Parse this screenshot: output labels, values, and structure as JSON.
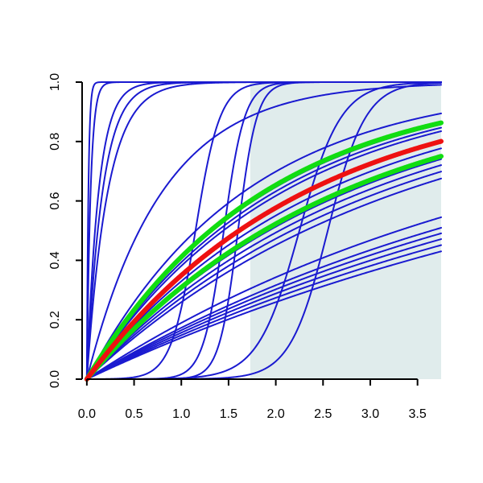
{
  "chart_data": {
    "type": "line",
    "xlim": [
      -0.05,
      3.75
    ],
    "ylim": [
      0,
      1
    ],
    "x_ticks": [
      0,
      0.5,
      1,
      1.5,
      2,
      2.5,
      3,
      3.5
    ],
    "x_tick_labels": [
      "0.0",
      "0.5",
      "1.0",
      "1.5",
      "2.0",
      "2.5",
      "3.0",
      "3.5"
    ],
    "y_ticks": [
      0,
      0.2,
      0.4,
      0.6,
      0.8,
      1
    ],
    "y_tick_labels": [
      "0.0",
      "0.2",
      "0.4",
      "0.6",
      "0.8",
      "1.0"
    ],
    "grid": false,
    "shaded_region": {
      "x_start": 1.73,
      "x_end": 3.75,
      "color": "#e0ecec"
    },
    "colors": {
      "blue": "#1a1ad0",
      "red": "#ee1111",
      "green": "#11dd11",
      "axis": "#000000"
    },
    "series": [
      {
        "color": "blue",
        "kind": "exp",
        "k": 60
      },
      {
        "color": "blue",
        "kind": "exp",
        "k": 25
      },
      {
        "color": "blue",
        "kind": "exp",
        "k": 8
      },
      {
        "color": "blue",
        "kind": "exp",
        "k": 6
      },
      {
        "color": "blue",
        "kind": "exp",
        "k": 4.5
      },
      {
        "color": "blue",
        "kind": "exp",
        "k": 1.25
      },
      {
        "color": "blue",
        "kind": "logistic",
        "mid": 1.6,
        "s": 0.1
      },
      {
        "color": "blue",
        "kind": "logistic",
        "mid": 2.25,
        "s": 0.22
      },
      {
        "color": "blue",
        "kind": "logistic",
        "mid": 2.55,
        "s": 0.2
      },
      {
        "color": "blue",
        "kind": "logistic",
        "mid": 1.45,
        "s": 0.11
      },
      {
        "color": "blue",
        "kind": "logistic",
        "mid": 1.15,
        "s": 0.13
      },
      {
        "color": "blue",
        "kind": "exp",
        "k": 0.6
      },
      {
        "color": "blue",
        "kind": "exp",
        "k": 0.52
      },
      {
        "color": "blue",
        "kind": "exp",
        "k": 0.5
      },
      {
        "color": "blue",
        "kind": "exp",
        "k": 0.48
      },
      {
        "color": "blue",
        "kind": "exp",
        "k": 0.4
      },
      {
        "color": "blue",
        "kind": "exp",
        "k": 0.36
      },
      {
        "color": "blue",
        "kind": "exp",
        "k": 0.34
      },
      {
        "color": "blue",
        "kind": "exp",
        "k": 0.32
      },
      {
        "color": "blue",
        "kind": "exp",
        "k": 0.3
      },
      {
        "color": "blue",
        "kind": "exp",
        "k": 0.21
      },
      {
        "color": "blue",
        "kind": "exp",
        "k": 0.19
      },
      {
        "color": "blue",
        "kind": "exp",
        "k": 0.18
      },
      {
        "color": "blue",
        "kind": "exp",
        "k": 0.17
      },
      {
        "color": "blue",
        "kind": "exp",
        "k": 0.16
      },
      {
        "color": "blue",
        "kind": "exp",
        "k": 0.15
      },
      {
        "color": "green",
        "kind": "exp",
        "k": 0.53,
        "width": 6
      },
      {
        "color": "green",
        "kind": "exp",
        "k": 0.37,
        "width": 6
      },
      {
        "color": "red",
        "kind": "exp",
        "k": 0.43,
        "width": 6
      }
    ]
  }
}
